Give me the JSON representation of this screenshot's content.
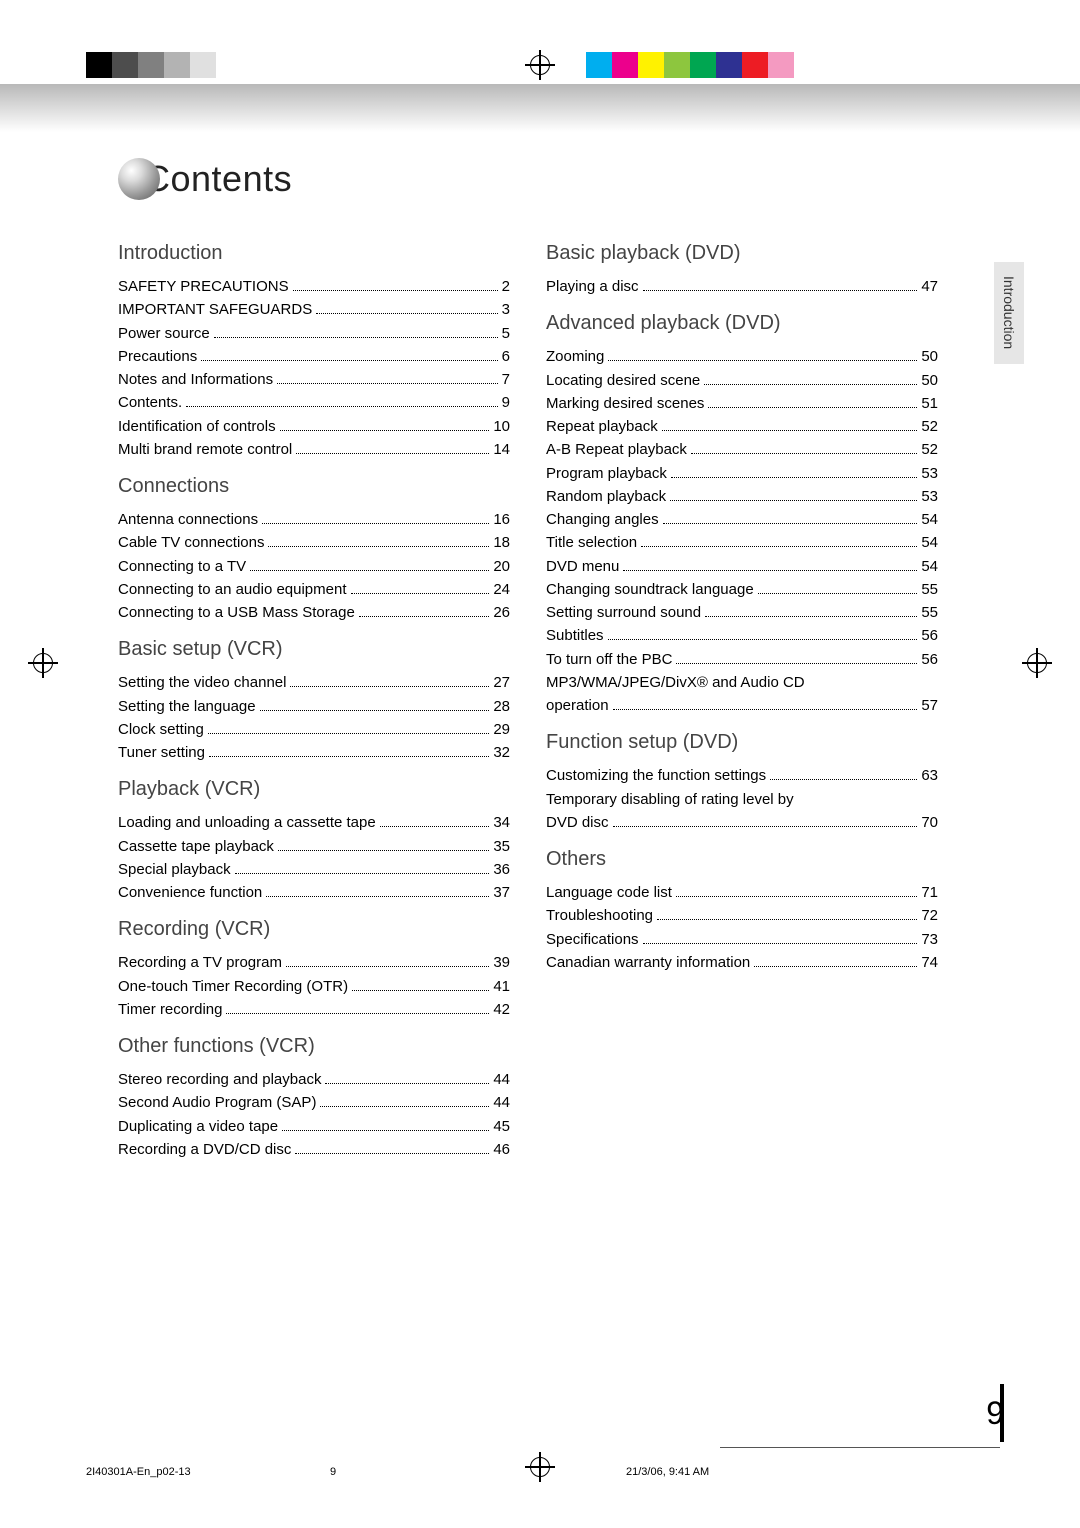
{
  "title": "Contents",
  "tab_label": "Introduction",
  "page_number": "9",
  "footer": {
    "file": "2I40301A-En_p02-13",
    "sig": "9",
    "timestamp": "21/3/06, 9:41 AM"
  },
  "cmyk_left": [
    "#000000",
    "#4d4d4d",
    "#808080",
    "#b3b3b3",
    "#e0e0e0",
    "#ffffff"
  ],
  "cmyk_right": [
    "#00aeef",
    "#ec008c",
    "#fff200",
    "#8dc63e",
    "#00a651",
    "#2e3192",
    "#ed1c24",
    "#f49ac1"
  ],
  "left_sections": [
    {
      "heading": "Introduction",
      "items": [
        {
          "t": "SAFETY PRECAUTIONS",
          "p": "2"
        },
        {
          "t": "IMPORTANT SAFEGUARDS",
          "p": "3"
        },
        {
          "t": "Power source",
          "p": "5"
        },
        {
          "t": "Precautions",
          "p": "6"
        },
        {
          "t": "Notes and Informations",
          "p": "7"
        },
        {
          "t": "Contents.",
          "p": "9"
        },
        {
          "t": "Identification of controls",
          "p": "10"
        },
        {
          "t": "Multi brand remote control",
          "p": "14"
        }
      ]
    },
    {
      "heading": "Connections",
      "items": [
        {
          "t": "Antenna connections",
          "p": "16"
        },
        {
          "t": "Cable TV connections",
          "p": "18"
        },
        {
          "t": "Connecting to a TV",
          "p": "20"
        },
        {
          "t": "Connecting to an audio equipment",
          "p": "24"
        },
        {
          "t": "Connecting to a USB Mass Storage",
          "p": "26"
        }
      ]
    },
    {
      "heading": "Basic setup (VCR)",
      "items": [
        {
          "t": "Setting the video channel",
          "p": "27"
        },
        {
          "t": "Setting the language",
          "p": "28"
        },
        {
          "t": "Clock setting",
          "p": "29"
        },
        {
          "t": "Tuner setting",
          "p": "32"
        }
      ]
    },
    {
      "heading": "Playback (VCR)",
      "items": [
        {
          "t": "Loading and unloading a cassette tape",
          "p": "34"
        },
        {
          "t": "Cassette tape playback",
          "p": "35"
        },
        {
          "t": "Special playback",
          "p": "36"
        },
        {
          "t": "Convenience function",
          "p": "37"
        }
      ]
    },
    {
      "heading": "Recording (VCR)",
      "items": [
        {
          "t": "Recording a TV program",
          "p": "39"
        },
        {
          "t": "One-touch Timer Recording (OTR)",
          "p": "41"
        },
        {
          "t": "Timer recording",
          "p": "42"
        }
      ]
    },
    {
      "heading": "Other functions (VCR)",
      "items": [
        {
          "t": "Stereo recording and playback",
          "p": "44"
        },
        {
          "t": "Second Audio Program (SAP)",
          "p": "44"
        },
        {
          "t": "Duplicating a video tape",
          "p": "45"
        },
        {
          "t": "Recording a DVD/CD disc",
          "p": "46"
        }
      ]
    }
  ],
  "right_sections": [
    {
      "heading": "Basic playback (DVD)",
      "items": [
        {
          "t": "Playing a disc",
          "p": "47"
        }
      ]
    },
    {
      "heading": "Advanced playback (DVD)",
      "items": [
        {
          "t": "Zooming",
          "p": "50"
        },
        {
          "t": "Locating desired scene",
          "p": "50"
        },
        {
          "t": "Marking desired scenes",
          "p": "51"
        },
        {
          "t": "Repeat playback",
          "p": "52"
        },
        {
          "t": "A-B Repeat playback",
          "p": "52"
        },
        {
          "t": "Program playback",
          "p": "53"
        },
        {
          "t": "Random playback",
          "p": "53"
        },
        {
          "t": "Changing angles",
          "p": "54"
        },
        {
          "t": "Title selection",
          "p": "54"
        },
        {
          "t": "DVD menu",
          "p": "54"
        },
        {
          "t": "Changing soundtrack language",
          "p": "55"
        },
        {
          "t": "Setting surround sound",
          "p": "55"
        },
        {
          "t": "Subtitles",
          "p": "56"
        },
        {
          "t": "To turn off the PBC",
          "p": "56"
        },
        {
          "t": "MP3/WMA/JPEG/DivX® and Audio CD\noperation",
          "p": "57"
        }
      ]
    },
    {
      "heading": "Function setup (DVD)",
      "items": [
        {
          "t": "Customizing the function settings",
          "p": "63"
        },
        {
          "t": "Temporary disabling of rating level by\nDVD disc",
          "p": "70"
        }
      ]
    },
    {
      "heading": "Others",
      "items": [
        {
          "t": "Language code list",
          "p": "71"
        },
        {
          "t": "Troubleshooting",
          "p": "72"
        },
        {
          "t": "Specifications",
          "p": "73"
        },
        {
          "t": "Canadian warranty information",
          "p": "74"
        }
      ]
    }
  ]
}
